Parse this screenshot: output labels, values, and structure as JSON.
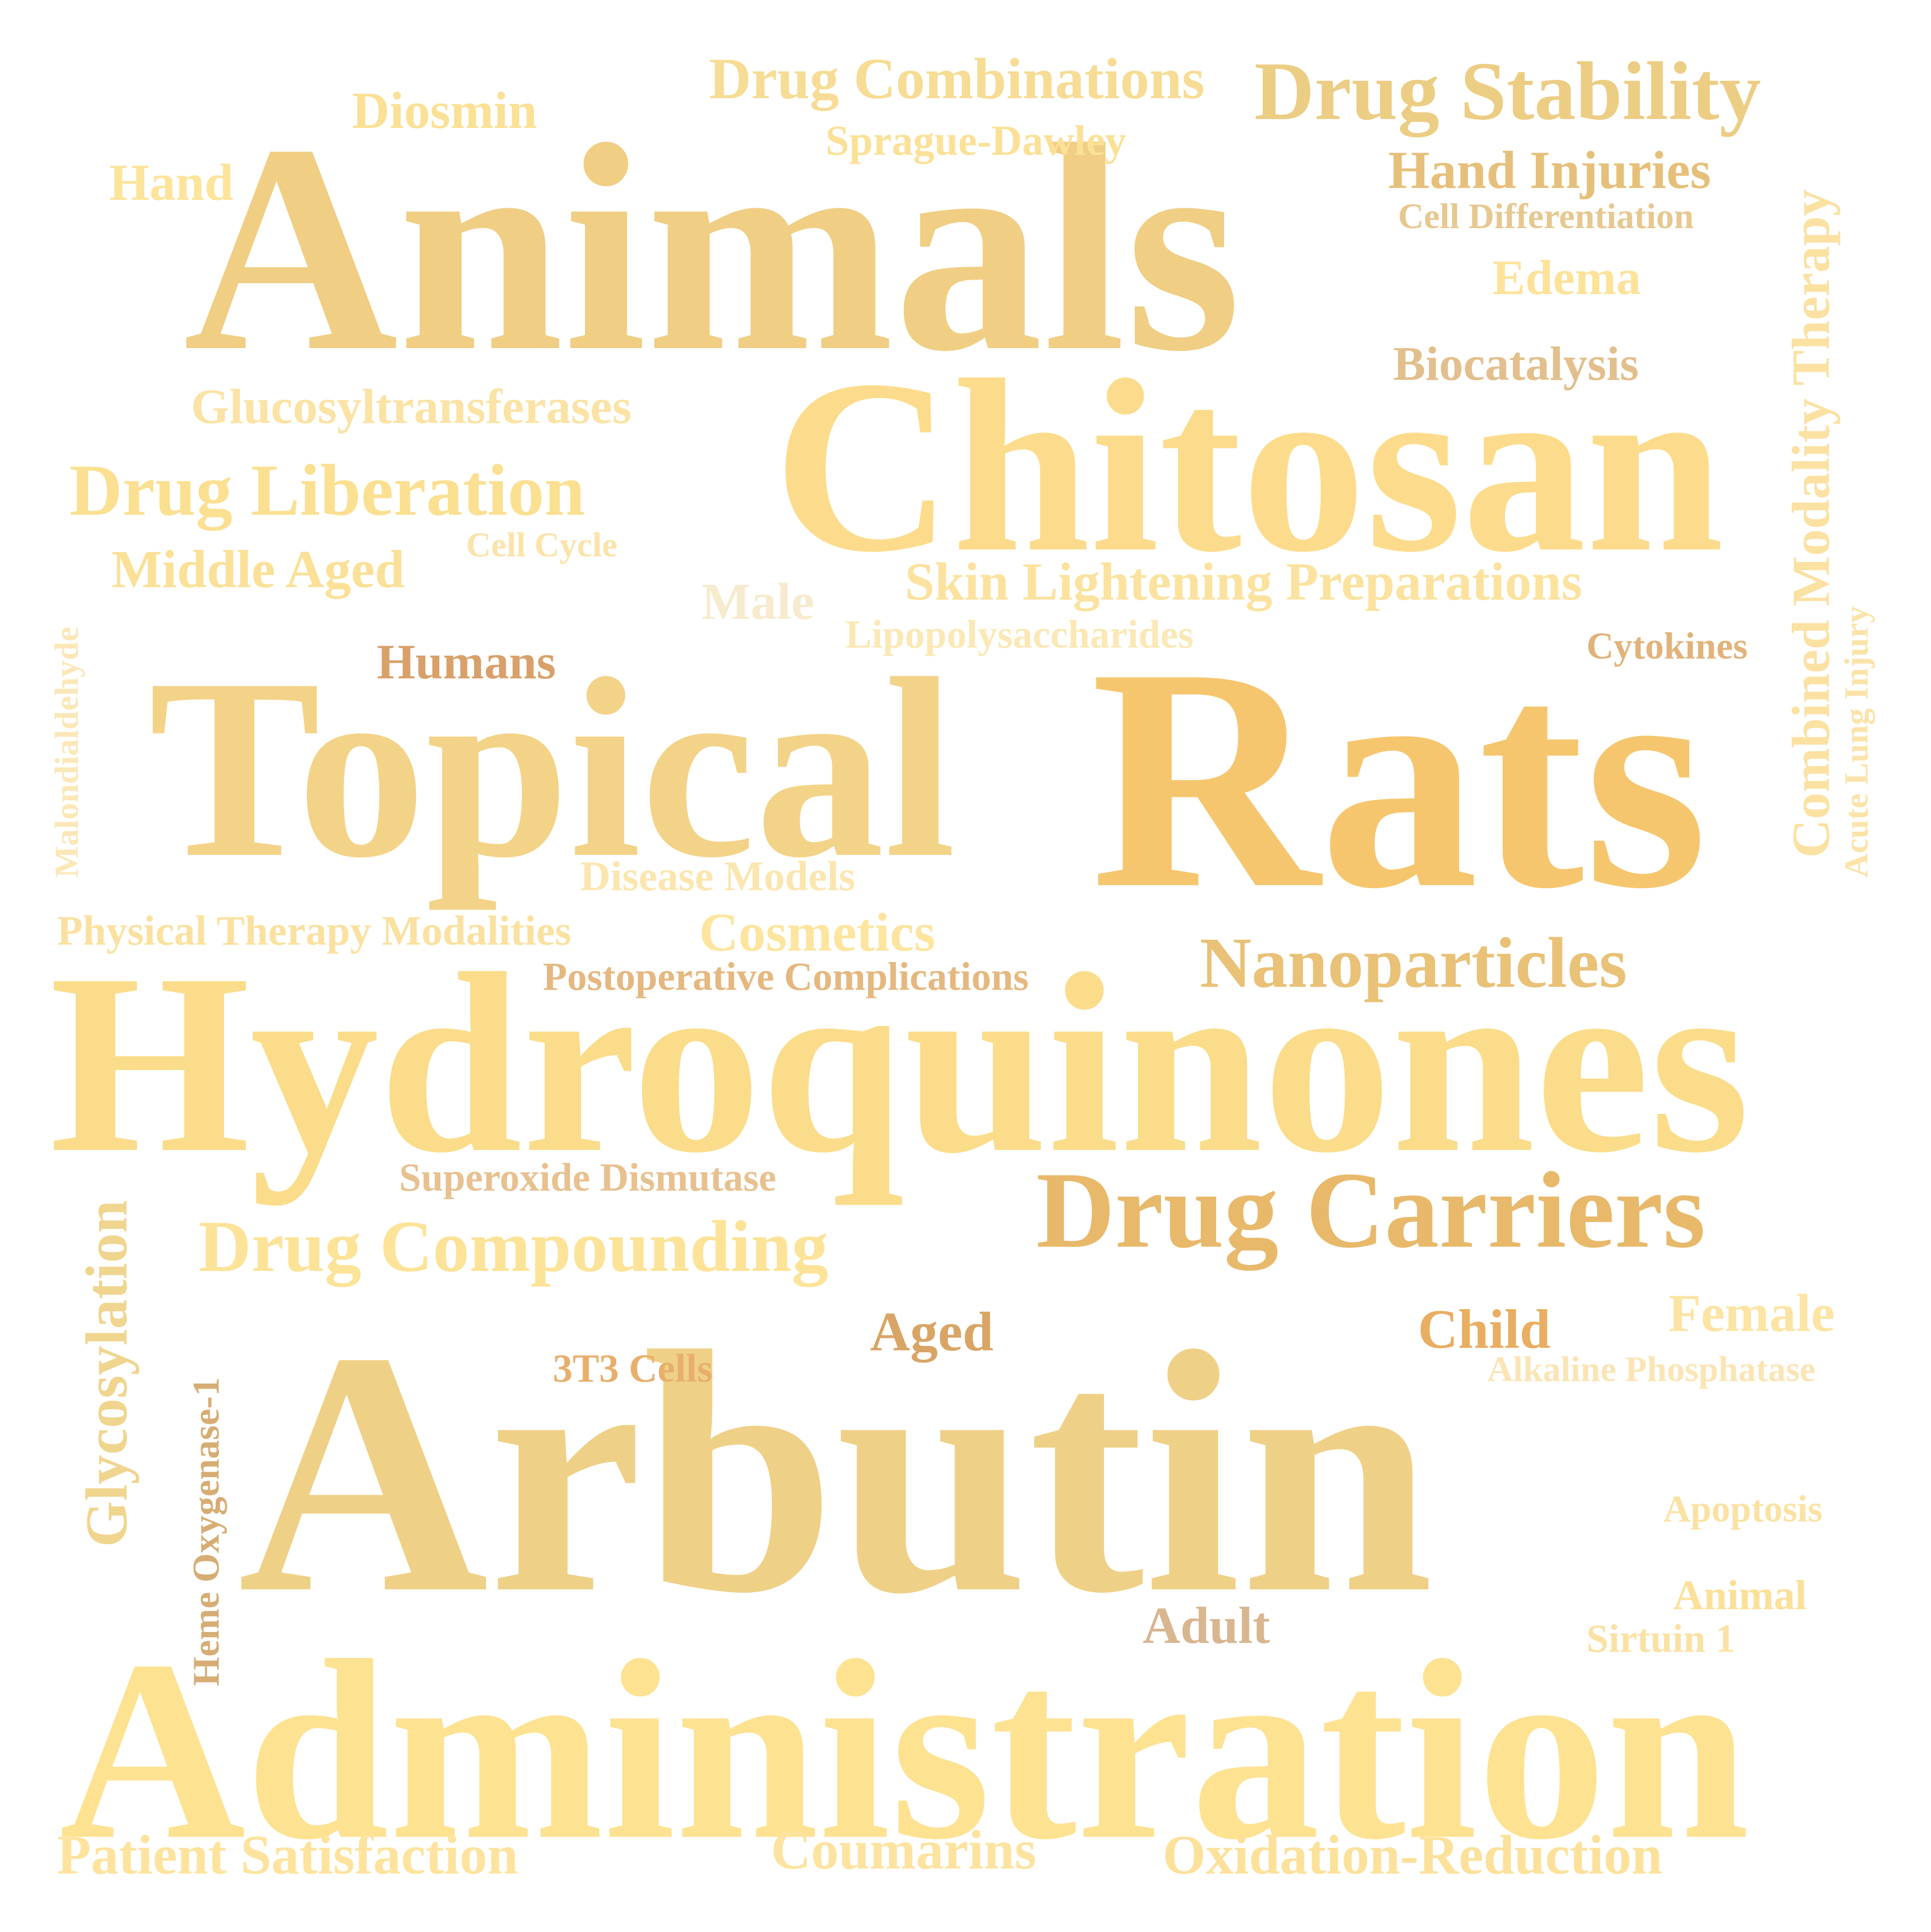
{
  "words": [
    {
      "id": "animals",
      "text": "Animals",
      "color": "#f0ce84"
    },
    {
      "id": "chitosan",
      "text": "Chitosan",
      "color": "#fcdc8c"
    },
    {
      "id": "topical",
      "text": "Topical",
      "color": "#f3d388"
    },
    {
      "id": "rats",
      "text": "Rats",
      "color": "#f6c66f"
    },
    {
      "id": "hydroquinones",
      "text": "Hydroquinones",
      "color": "#fadc8a"
    },
    {
      "id": "arbutin",
      "text": "Arbutin",
      "color": "#efd087"
    },
    {
      "id": "administration",
      "text": "Administration",
      "color": "#fde292"
    },
    {
      "id": "drug-carriers",
      "text": "Drug Carriers",
      "color": "#e8b96a"
    },
    {
      "id": "drug-stability",
      "text": "Drug Stability",
      "color": "#eccd84"
    },
    {
      "id": "drug-combinations",
      "text": "Drug Combinations",
      "color": "#f6dc94"
    },
    {
      "id": "diosmin",
      "text": "Diosmin",
      "color": "#fbe196"
    },
    {
      "id": "sprague-dawley",
      "text": "Sprague-Dawley",
      "color": "#fbe197"
    },
    {
      "id": "hand",
      "text": "Hand",
      "color": "#fde49b"
    },
    {
      "id": "hand-injuries",
      "text": "Hand Injuries",
      "color": "#e6c07b"
    },
    {
      "id": "cell-differentiation",
      "text": "Cell Differentiation",
      "color": "#e6c890"
    },
    {
      "id": "edema",
      "text": "Edema",
      "color": "#fde29a"
    },
    {
      "id": "biocatalysis",
      "text": "Biocatalysis",
      "color": "#e2bf8c"
    },
    {
      "id": "glucosyltransferases",
      "text": "Glucosyltransferases",
      "color": "#fbe3a5"
    },
    {
      "id": "drug-liberation",
      "text": "Drug Liberation",
      "color": "#fbe092"
    },
    {
      "id": "cell-cycle",
      "text": "Cell Cycle",
      "color": "#fbe3aa"
    },
    {
      "id": "middle-aged",
      "text": "Middle Aged",
      "color": "#fbe097"
    },
    {
      "id": "male",
      "text": "Male",
      "color": "#f7ebcf"
    },
    {
      "id": "skin-lightening-preparations",
      "text": "Skin Lightening Preparations",
      "color": "#fbe29e"
    },
    {
      "id": "lipopolysaccharides",
      "text": "Lipopolysaccharides",
      "color": "#fbe8b5"
    },
    {
      "id": "humans",
      "text": "Humans",
      "color": "#d9a06a"
    },
    {
      "id": "cytokines",
      "text": "Cytokines",
      "color": "#e1b37b"
    },
    {
      "id": "malondialdehyde",
      "text": "Malondialdehyde",
      "color": "#fbe7b8"
    },
    {
      "id": "combined-modality-therapy",
      "text": "Combined Modality Therapy",
      "color": "#fbe1a2"
    },
    {
      "id": "acute-lung-injury",
      "text": "Acute Lung Injury",
      "color": "#fbe3a9"
    },
    {
      "id": "disease-models",
      "text": "Disease Models",
      "color": "#fbe6b0"
    },
    {
      "id": "physical-therapy-modalities",
      "text": "Physical Therapy Modalities",
      "color": "#fbe1a0"
    },
    {
      "id": "cosmetics",
      "text": "Cosmetics",
      "color": "#fde59f"
    },
    {
      "id": "postoperative-complications",
      "text": "Postoperative Complications",
      "color": "#e5b880"
    },
    {
      "id": "nanoparticles",
      "text": "Nanoparticles",
      "color": "#e9c177"
    },
    {
      "id": "superoxide-dismutase",
      "text": "Superoxide Dismutase",
      "color": "#e8c190"
    },
    {
      "id": "drug-compounding",
      "text": "Drug Compounding",
      "color": "#fce398"
    },
    {
      "id": "glycosylation",
      "text": "Glycosylation",
      "color": "#f0d58f"
    },
    {
      "id": "heme-oxygenase-1",
      "text": "Heme Oxygenase-1",
      "color": "#d6ad74"
    },
    {
      "id": "3t3-cells",
      "text": "3T3 Cells",
      "color": "#e8af6c"
    },
    {
      "id": "aged",
      "text": "Aged",
      "color": "#d9a565"
    },
    {
      "id": "child",
      "text": "Child",
      "color": "#e9ae62"
    },
    {
      "id": "female",
      "text": "Female",
      "color": "#fce4a4"
    },
    {
      "id": "alkaline-phosphatase",
      "text": "Alkaline Phosphatase",
      "color": "#fbe5b5"
    },
    {
      "id": "apoptosis",
      "text": "Apoptosis",
      "color": "#fbe2a4"
    },
    {
      "id": "animal",
      "text": "Animal",
      "color": "#fce099"
    },
    {
      "id": "adult",
      "text": "Adult",
      "color": "#d8b690"
    },
    {
      "id": "sirtuin-1",
      "text": "Sirtuin 1",
      "color": "#fbe1a4"
    },
    {
      "id": "patient-satisfaction",
      "text": "Patient Satisfaction",
      "color": "#fde39d"
    },
    {
      "id": "coumarins",
      "text": "Coumarins",
      "color": "#fde3a0"
    },
    {
      "id": "oxidation-reduction",
      "text": "Oxidation-Reduction",
      "color": "#fce19b"
    }
  ]
}
